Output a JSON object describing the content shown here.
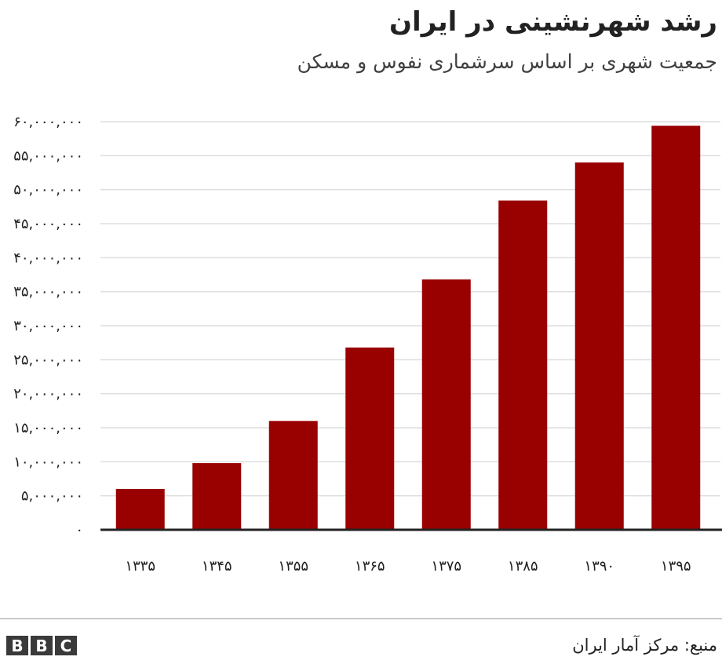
{
  "chart_data": {
    "type": "bar",
    "title": "رشد شهرنشینی در ایران",
    "subtitle": "جمعیت شهری بر اساس سرشماری نفوس و مسکن",
    "categories": [
      "۱۳۳۵",
      "۱۳۴۵",
      "۱۳۵۵",
      "۱۳۶۵",
      "۱۳۷۵",
      "۱۳۸۵",
      "۱۳۹۰",
      "۱۳۹۵"
    ],
    "values": [
      6000000,
      9800000,
      16000000,
      26800000,
      36800000,
      48400000,
      54000000,
      59400000
    ],
    "ylim": [
      0,
      60000000
    ],
    "yticks": [
      0,
      5000000,
      10000000,
      15000000,
      20000000,
      25000000,
      30000000,
      35000000,
      40000000,
      45000000,
      50000000,
      55000000,
      60000000
    ],
    "ytick_labels": [
      "۰",
      "۵,۰۰۰,۰۰۰",
      "۱۰,۰۰۰,۰۰۰",
      "۱۵,۰۰۰,۰۰۰",
      "۲۰,۰۰۰,۰۰۰",
      "۲۵,۰۰۰,۰۰۰",
      "۳۰,۰۰۰,۰۰۰",
      "۳۵,۰۰۰,۰۰۰",
      "۴۰,۰۰۰,۰۰۰",
      "۴۵,۰۰۰,۰۰۰",
      "۵۰,۰۰۰,۰۰۰",
      "۵۵,۰۰۰,۰۰۰",
      "۶۰,۰۰۰,۰۰۰"
    ],
    "grid": true,
    "bar_color": "#990000",
    "grid_color": "#dddddd",
    "axis_color": "#222222"
  },
  "footer": {
    "source": "منبع: مرکز آمار ایران",
    "logo_letters": [
      "B",
      "B",
      "C"
    ]
  }
}
